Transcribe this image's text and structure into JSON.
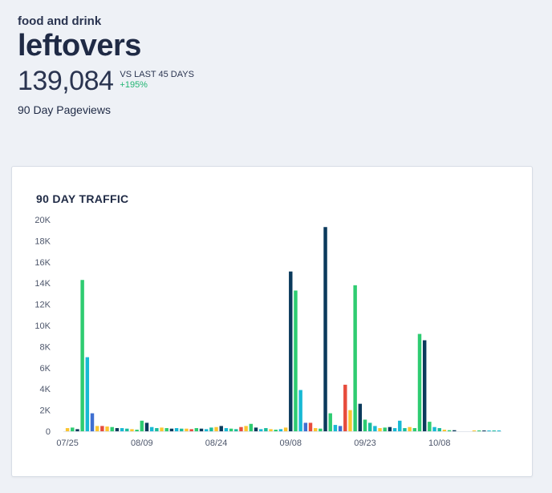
{
  "header": {
    "category": "food and drink",
    "title": "leftovers",
    "metric_value": "139,084",
    "compare_label": "VS LAST 45 DAYS",
    "compare_change": "+195%",
    "metric_caption": "90 Day Pageviews"
  },
  "colors": {
    "positive": "#22b573",
    "palette": [
      "#fbc531",
      "#2ecc71",
      "#0b3a5c",
      "#18b9d4",
      "#1abc9c",
      "#e74c3c",
      "#3f6fd1"
    ]
  },
  "chart_data": {
    "type": "bar",
    "title": "90 DAY TRAFFIC",
    "xlabel": "",
    "ylabel": "",
    "ylim": [
      0,
      20000
    ],
    "y_ticks": [
      0,
      2000,
      4000,
      6000,
      8000,
      10000,
      12000,
      14000,
      16000,
      18000,
      20000
    ],
    "y_tick_labels": [
      "0",
      "2K",
      "4K",
      "6K",
      "8K",
      "10K",
      "12K",
      "14K",
      "16K",
      "18K",
      "20K"
    ],
    "x_tick_labels": [
      {
        "index": 0,
        "label": "07/25"
      },
      {
        "index": 15,
        "label": "08/09"
      },
      {
        "index": 30,
        "label": "08/24"
      },
      {
        "index": 45,
        "label": "09/08"
      },
      {
        "index": 60,
        "label": "09/23"
      },
      {
        "index": 75,
        "label": "10/08"
      }
    ],
    "grid": false,
    "bars": [
      {
        "value": 300,
        "color": "#fbc531"
      },
      {
        "value": 350,
        "color": "#2ecc71"
      },
      {
        "value": 200,
        "color": "#0b3a5c"
      },
      {
        "value": 14300,
        "color": "#2ecc71"
      },
      {
        "value": 7000,
        "color": "#18b9d4"
      },
      {
        "value": 1700,
        "color": "#3f6fd1"
      },
      {
        "value": 500,
        "color": "#fbc531"
      },
      {
        "value": 500,
        "color": "#e74c3c"
      },
      {
        "value": 450,
        "color": "#fbc531"
      },
      {
        "value": 400,
        "color": "#2ecc71"
      },
      {
        "value": 300,
        "color": "#0b3a5c"
      },
      {
        "value": 300,
        "color": "#18b9d4"
      },
      {
        "value": 250,
        "color": "#1abc9c"
      },
      {
        "value": 200,
        "color": "#fbc531"
      },
      {
        "value": 150,
        "color": "#2ecc71"
      },
      {
        "value": 1000,
        "color": "#2ecc71"
      },
      {
        "value": 800,
        "color": "#0b3a5c"
      },
      {
        "value": 400,
        "color": "#18b9d4"
      },
      {
        "value": 300,
        "color": "#1abc9c"
      },
      {
        "value": 350,
        "color": "#fbc531"
      },
      {
        "value": 300,
        "color": "#2ecc71"
      },
      {
        "value": 250,
        "color": "#0b3a5c"
      },
      {
        "value": 300,
        "color": "#18b9d4"
      },
      {
        "value": 250,
        "color": "#1abc9c"
      },
      {
        "value": 250,
        "color": "#fbc531"
      },
      {
        "value": 200,
        "color": "#e74c3c"
      },
      {
        "value": 300,
        "color": "#2ecc71"
      },
      {
        "value": 250,
        "color": "#0b3a5c"
      },
      {
        "value": 200,
        "color": "#18b9d4"
      },
      {
        "value": 350,
        "color": "#1abc9c"
      },
      {
        "value": 400,
        "color": "#fbc531"
      },
      {
        "value": 500,
        "color": "#0b3a5c"
      },
      {
        "value": 300,
        "color": "#18b9d4"
      },
      {
        "value": 250,
        "color": "#2ecc71"
      },
      {
        "value": 200,
        "color": "#1abc9c"
      },
      {
        "value": 400,
        "color": "#e74c3c"
      },
      {
        "value": 500,
        "color": "#fbc531"
      },
      {
        "value": 700,
        "color": "#2ecc71"
      },
      {
        "value": 350,
        "color": "#0b3a5c"
      },
      {
        "value": 200,
        "color": "#18b9d4"
      },
      {
        "value": 300,
        "color": "#1abc9c"
      },
      {
        "value": 200,
        "color": "#fbc531"
      },
      {
        "value": 150,
        "color": "#2ecc71"
      },
      {
        "value": 200,
        "color": "#18b9d4"
      },
      {
        "value": 350,
        "color": "#fbc531"
      },
      {
        "value": 15100,
        "color": "#0b3a5c"
      },
      {
        "value": 13300,
        "color": "#2ecc71"
      },
      {
        "value": 3900,
        "color": "#18b9d4"
      },
      {
        "value": 800,
        "color": "#3f6fd1"
      },
      {
        "value": 800,
        "color": "#e74c3c"
      },
      {
        "value": 300,
        "color": "#fbc531"
      },
      {
        "value": 250,
        "color": "#2ecc71"
      },
      {
        "value": 19300,
        "color": "#0b3a5c"
      },
      {
        "value": 1700,
        "color": "#2ecc71"
      },
      {
        "value": 600,
        "color": "#18b9d4"
      },
      {
        "value": 500,
        "color": "#3f6fd1"
      },
      {
        "value": 4400,
        "color": "#e74c3c"
      },
      {
        "value": 2000,
        "color": "#fbc531"
      },
      {
        "value": 13800,
        "color": "#2ecc71"
      },
      {
        "value": 2600,
        "color": "#0b3a5c"
      },
      {
        "value": 1100,
        "color": "#2ecc71"
      },
      {
        "value": 800,
        "color": "#1abc9c"
      },
      {
        "value": 500,
        "color": "#18b9d4"
      },
      {
        "value": 300,
        "color": "#fbc531"
      },
      {
        "value": 350,
        "color": "#2ecc71"
      },
      {
        "value": 400,
        "color": "#0b3a5c"
      },
      {
        "value": 300,
        "color": "#18b9d4"
      },
      {
        "value": 1000,
        "color": "#18b9d4"
      },
      {
        "value": 300,
        "color": "#1abc9c"
      },
      {
        "value": 400,
        "color": "#fbc531"
      },
      {
        "value": 300,
        "color": "#2ecc71"
      },
      {
        "value": 9200,
        "color": "#2ecc71"
      },
      {
        "value": 8600,
        "color": "#0b3a5c"
      },
      {
        "value": 900,
        "color": "#2ecc71"
      },
      {
        "value": 400,
        "color": "#18b9d4"
      },
      {
        "value": 300,
        "color": "#1abc9c"
      },
      {
        "value": 150,
        "color": "#fbc531"
      },
      {
        "value": 100,
        "color": "#2ecc71"
      },
      {
        "value": 100,
        "color": "#0b3a5c"
      },
      {
        "value": 0,
        "color": "#18b9d4"
      },
      {
        "value": 0,
        "color": "#1abc9c"
      },
      {
        "value": 0,
        "color": "#fbc531"
      },
      {
        "value": 80,
        "color": "#fbc531"
      },
      {
        "value": 80,
        "color": "#2ecc71"
      },
      {
        "value": 60,
        "color": "#0b3a5c"
      },
      {
        "value": 60,
        "color": "#18b9d4"
      },
      {
        "value": 50,
        "color": "#1abc9c"
      },
      {
        "value": 50,
        "color": "#18b9d4"
      }
    ]
  }
}
